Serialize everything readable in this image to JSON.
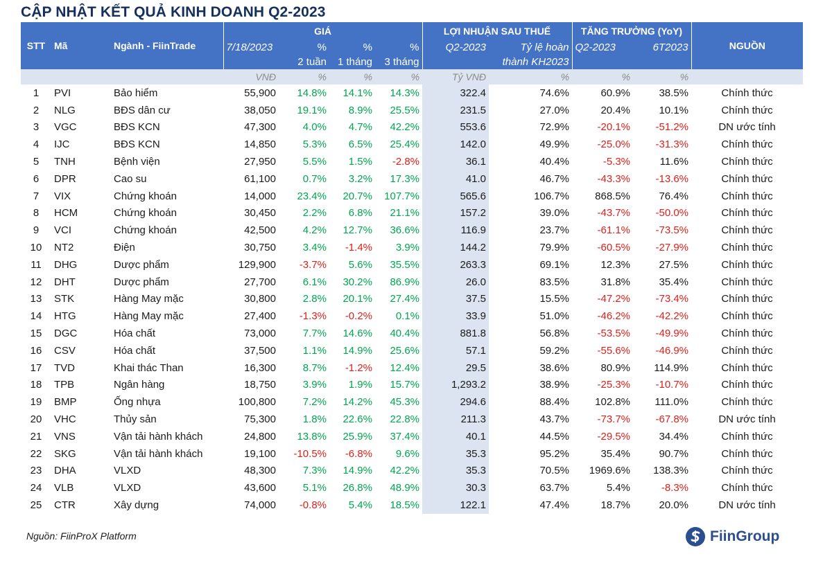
{
  "title": "CẬP NHẬT KẾT QUẢ KINH DOANH Q2-2023",
  "headers": {
    "stt": "STT",
    "ma": "Mã",
    "nganh": "Ngành - FiinTrade",
    "gia": "GIÁ",
    "loi_nhuan": "LỢI NHUẬN SAU THUẾ",
    "tang_truong": "TĂNG TRƯỞNG (YoY)",
    "nguon": "NGUỒN",
    "date": "7/18/2023",
    "pct_a": "%",
    "pct_b": "%",
    "pct_c": "%",
    "w2": "2 tuần",
    "m1": "1 tháng",
    "m3": "3 tháng",
    "q2": "Q2-2023",
    "ratio1": "Tỷ lệ hoàn",
    "ratio2": "thành KH2023",
    "g_q2": "Q2-2023",
    "g_6t": "6T2023"
  },
  "units": [
    "VNĐ",
    "%",
    "%",
    "%",
    "Tỷ VNĐ",
    "%",
    "%",
    "%"
  ],
  "rows": [
    [
      "1",
      "PVI",
      "Bảo hiểm",
      "55,900",
      "14.8%",
      "14.1%",
      "14.3%",
      "322.4",
      "74.6%",
      "60.9%",
      "38.5%",
      "Chính thức"
    ],
    [
      "2",
      "NLG",
      "BĐS dân cư",
      "38,050",
      "19.1%",
      "8.9%",
      "25.5%",
      "231.5",
      "27.0%",
      "20.4%",
      "10.1%",
      "Chính thức"
    ],
    [
      "3",
      "VGC",
      "BĐS KCN",
      "47,300",
      "4.0%",
      "4.7%",
      "42.2%",
      "553.6",
      "72.9%",
      "-20.1%",
      "-51.2%",
      "DN ước tính"
    ],
    [
      "4",
      "IJC",
      "BĐS KCN",
      "14,850",
      "5.3%",
      "6.5%",
      "25.4%",
      "142.0",
      "49.9%",
      "-25.0%",
      "-31.3%",
      "Chính thức"
    ],
    [
      "5",
      "TNH",
      "Bệnh viện",
      "27,950",
      "5.5%",
      "1.5%",
      "-2.8%",
      "36.1",
      "40.4%",
      "-5.3%",
      "11.6%",
      "Chính thức"
    ],
    [
      "6",
      "DPR",
      "Cao su",
      "61,100",
      "0.7%",
      "3.2%",
      "17.3%",
      "41.0",
      "46.7%",
      "-43.3%",
      "-13.6%",
      "Chính thức"
    ],
    [
      "7",
      "VIX",
      "Chứng khoán",
      "14,000",
      "23.4%",
      "20.7%",
      "107.7%",
      "565.6",
      "106.7%",
      "868.5%",
      "76.4%",
      "Chính thức"
    ],
    [
      "8",
      "HCM",
      "Chứng khoán",
      "30,450",
      "2.2%",
      "6.8%",
      "21.1%",
      "157.2",
      "39.0%",
      "-43.7%",
      "-50.0%",
      "Chính thức"
    ],
    [
      "9",
      "VCI",
      "Chứng khoán",
      "42,500",
      "4.2%",
      "12.7%",
      "36.6%",
      "116.9",
      "23.7%",
      "-61.1%",
      "-73.5%",
      "Chính thức"
    ],
    [
      "10",
      "NT2",
      "Điện",
      "30,750",
      "3.4%",
      "-1.4%",
      "3.9%",
      "144.2",
      "79.9%",
      "-60.5%",
      "-27.9%",
      "Chính thức"
    ],
    [
      "11",
      "DHG",
      "Dược phẩm",
      "129,900",
      "-3.7%",
      "5.6%",
      "35.5%",
      "263.3",
      "69.1%",
      "12.3%",
      "27.5%",
      "Chính thức"
    ],
    [
      "12",
      "DHT",
      "Dược phẩm",
      "27,700",
      "6.1%",
      "30.2%",
      "86.9%",
      "26.0",
      "83.5%",
      "31.8%",
      "35.4%",
      "Chính thức"
    ],
    [
      "13",
      "STK",
      "Hàng May mặc",
      "30,800",
      "2.8%",
      "20.1%",
      "27.4%",
      "37.5",
      "15.5%",
      "-47.2%",
      "-73.4%",
      "Chính thức"
    ],
    [
      "14",
      "HTG",
      "Hàng May mặc",
      "27,400",
      "-1.3%",
      "-0.2%",
      "0.1%",
      "33.9",
      "51.0%",
      "-46.2%",
      "-42.2%",
      "Chính thức"
    ],
    [
      "15",
      "DGC",
      "Hóa chất",
      "73,000",
      "7.7%",
      "14.6%",
      "40.4%",
      "881.8",
      "56.8%",
      "-53.5%",
      "-49.9%",
      "Chính thức"
    ],
    [
      "16",
      "CSV",
      "Hóa chất",
      "37,500",
      "1.1%",
      "14.9%",
      "25.6%",
      "57.1",
      "59.2%",
      "-55.6%",
      "-46.9%",
      "Chính thức"
    ],
    [
      "17",
      "TVD",
      "Khai thác Than",
      "16,300",
      "8.7%",
      "-1.2%",
      "12.4%",
      "29.5",
      "38.6%",
      "80.9%",
      "114.9%",
      "Chính thức"
    ],
    [
      "18",
      "TPB",
      "Ngân hàng",
      "18,750",
      "3.9%",
      "1.9%",
      "15.7%",
      "1,293.2",
      "38.9%",
      "-25.3%",
      "-10.7%",
      "Chính thức"
    ],
    [
      "19",
      "BMP",
      "Ống nhựa",
      "100,800",
      "7.2%",
      "14.2%",
      "45.3%",
      "294.6",
      "88.4%",
      "102.8%",
      "111.0%",
      "Chính thức"
    ],
    [
      "20",
      "VHC",
      "Thủy sản",
      "75,300",
      "1.8%",
      "22.6%",
      "22.8%",
      "211.3",
      "43.7%",
      "-73.7%",
      "-67.8%",
      "DN ước tính"
    ],
    [
      "21",
      "VNS",
      "Vận tải hành khách",
      "24,800",
      "13.8%",
      "25.9%",
      "37.4%",
      "40.1",
      "44.5%",
      "-29.5%",
      "34.4%",
      "Chính thức"
    ],
    [
      "22",
      "SKG",
      "Vận tải hành khách",
      "19,100",
      "-10.5%",
      "-6.8%",
      "9.6%",
      "35.3",
      "95.2%",
      "35.4%",
      "90.7%",
      "Chính thức"
    ],
    [
      "23",
      "DHA",
      "VLXD",
      "48,300",
      "7.3%",
      "14.9%",
      "42.2%",
      "35.3",
      "70.5%",
      "1969.6%",
      "138.3%",
      "Chính thức"
    ],
    [
      "24",
      "VLB",
      "VLXD",
      "43,600",
      "5.1%",
      "26.8%",
      "48.9%",
      "30.3",
      "63.7%",
      "5.4%",
      "-8.3%",
      "Chính thức"
    ],
    [
      "25",
      "CTR",
      "Xây dựng",
      "74,000",
      "-0.8%",
      "5.4%",
      "18.5%",
      "122.1",
      "47.4%",
      "18.7%",
      "20.0%",
      "DN ước tính"
    ]
  ],
  "footer": {
    "source": "Nguồn: FiinProX Platform",
    "logo": "FiinGroup"
  },
  "colors": {
    "header_bg": "#4472c4",
    "highlight_bg": "#dce4f1",
    "positive": "#00a650",
    "negative": "#e0201a",
    "title": "#16305e"
  }
}
